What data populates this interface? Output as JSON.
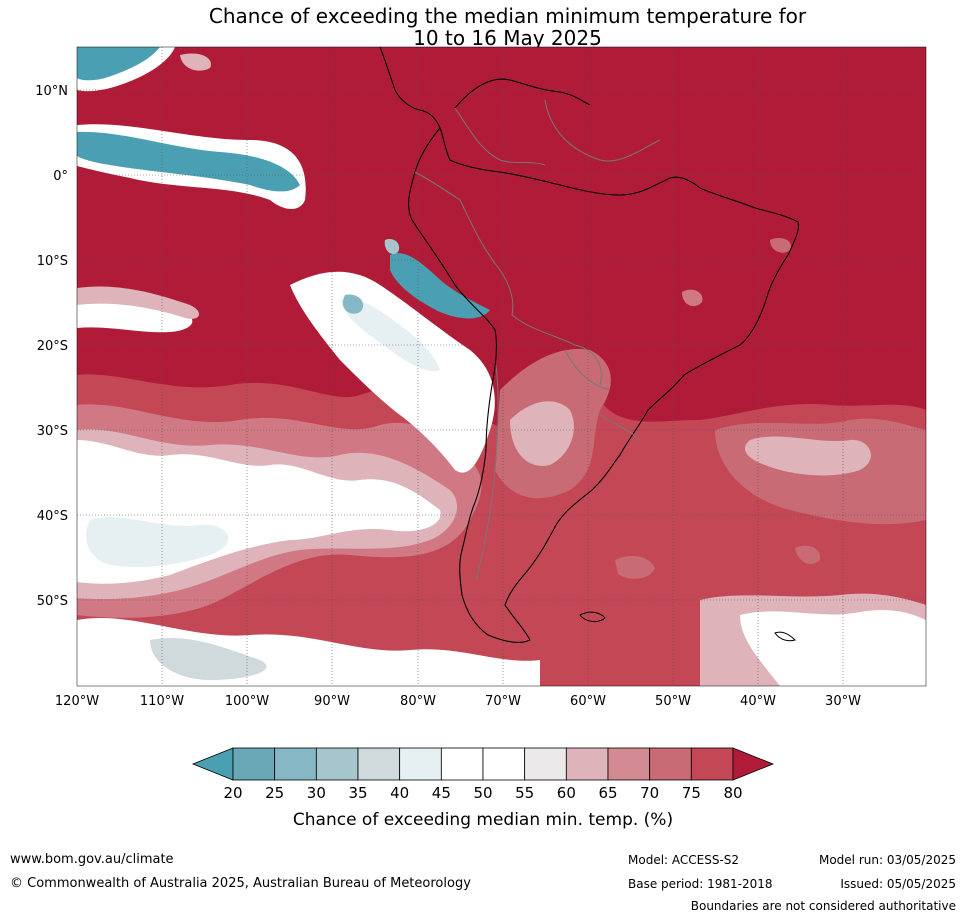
{
  "title": {
    "line1": "Chance of exceeding the median minimum temperature for",
    "line2": "10 to 16 May 2025"
  },
  "map": {
    "lat_labels": [
      "10°N",
      "0°",
      "10°S",
      "20°S",
      "30°S",
      "40°S",
      "50°S"
    ],
    "lon_labels": [
      "120°W",
      "110°W",
      "100°W",
      "90°W",
      "80°W",
      "70°W",
      "60°W",
      "50°W",
      "40°W",
      "30°W"
    ],
    "colors": {
      "very_high": "#b01c38",
      "high": "#c44756",
      "mid_high": "#d07985",
      "low_high": "#deb3b9",
      "near": "#ebe9ea",
      "neutral": "#ffffff",
      "low1": "#e6eff1",
      "low2": "#d0d9dc",
      "low3": "#a7c5cc",
      "low4": "#86b7c4",
      "low5": "#69a8b5",
      "lowest": "#4aa0b2"
    }
  },
  "colorbar": {
    "ticks": [
      "20",
      "25",
      "30",
      "35",
      "40",
      "45",
      "50",
      "55",
      "60",
      "65",
      "70",
      "75",
      "80"
    ],
    "label": "Chance of exceeding median min. temp. (%)",
    "segment_colors": [
      "#4aa0b2",
      "#69a8b5",
      "#86b7c4",
      "#a7c5cc",
      "#d0d9dc",
      "#e6eff1",
      "#ffffff",
      "#ffffff",
      "#ebe9ea",
      "#deb3b9",
      "#d48a92",
      "#c86b75",
      "#c44756",
      "#b01c38"
    ]
  },
  "footer": {
    "url": "www.bom.gov.au/climate",
    "copyright": "© Commonwealth of Australia 2025, Australian Bureau of Meteorology",
    "model": "Model: ACCESS-S2",
    "base_period": "Base period: 1981-2018",
    "model_run": "Model run: 03/05/2025",
    "issued": "Issued: 05/05/2025",
    "disclaimer": "Boundaries are not considered authoritative"
  }
}
